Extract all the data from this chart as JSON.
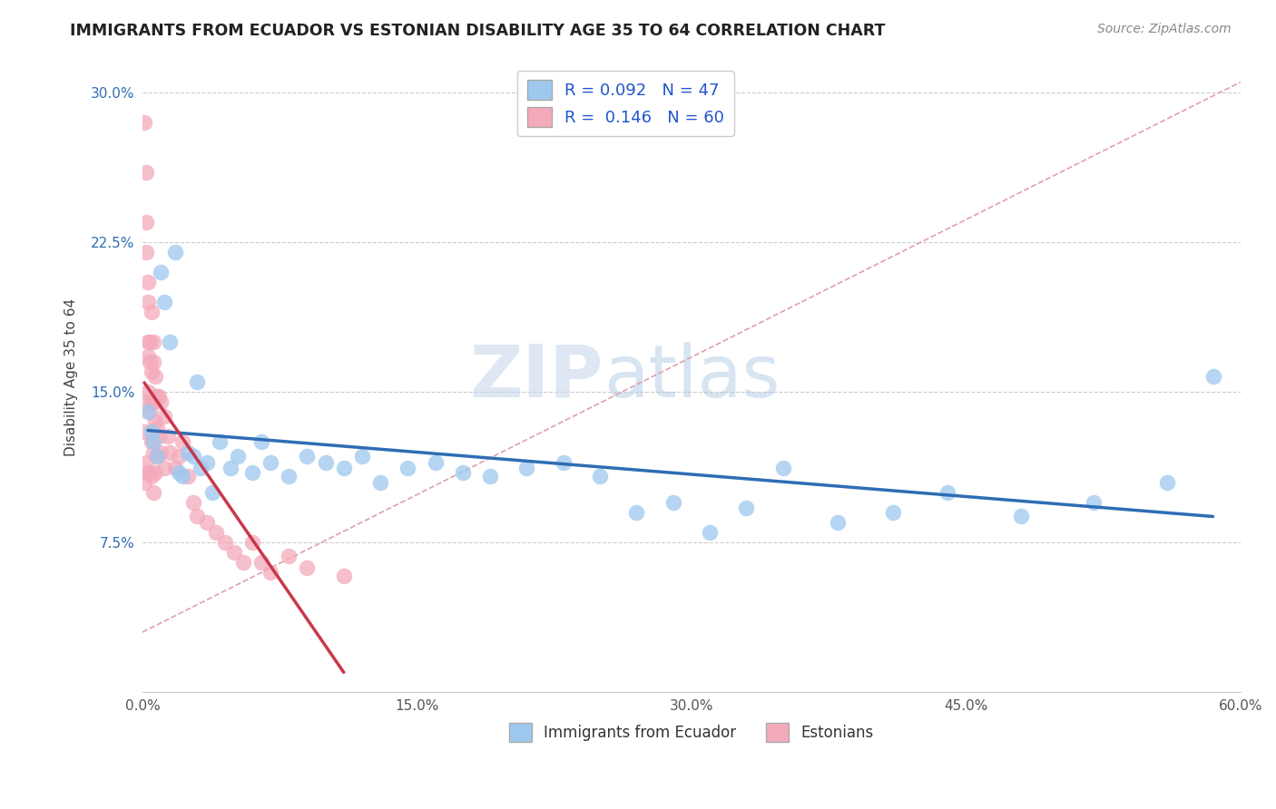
{
  "title": "IMMIGRANTS FROM ECUADOR VS ESTONIAN DISABILITY AGE 35 TO 64 CORRELATION CHART",
  "source": "Source: ZipAtlas.com",
  "ylabel": "Disability Age 35 to 64",
  "xlim": [
    0.0,
    0.6
  ],
  "ylim": [
    0.0,
    0.315
  ],
  "xticks": [
    0.0,
    0.15,
    0.3,
    0.45,
    0.6
  ],
  "xticklabels": [
    "0.0%",
    "15.0%",
    "30.0%",
    "45.0%",
    "60.0%"
  ],
  "yticks": [
    0.0,
    0.075,
    0.15,
    0.225,
    0.3
  ],
  "yticklabels": [
    "",
    "7.5%",
    "15.0%",
    "22.5%",
    "30.0%"
  ],
  "R_blue": 0.092,
  "N_blue": 47,
  "R_pink": 0.146,
  "N_pink": 60,
  "blue_color": "#9EC8EE",
  "pink_color": "#F4AABB",
  "blue_line_color": "#2E6DB4",
  "pink_line_color": "#C8384A",
  "legend_labels": [
    "Immigrants from Ecuador",
    "Estonians"
  ],
  "blue_scatter_x": [
    0.003,
    0.005,
    0.006,
    0.008,
    0.01,
    0.012,
    0.015,
    0.018,
    0.02,
    0.022,
    0.025,
    0.028,
    0.03,
    0.032,
    0.035,
    0.038,
    0.042,
    0.048,
    0.052,
    0.06,
    0.065,
    0.07,
    0.08,
    0.09,
    0.1,
    0.11,
    0.12,
    0.13,
    0.145,
    0.16,
    0.175,
    0.19,
    0.21,
    0.23,
    0.25,
    0.27,
    0.29,
    0.31,
    0.33,
    0.35,
    0.38,
    0.41,
    0.44,
    0.48,
    0.52,
    0.56,
    0.585
  ],
  "blue_scatter_y": [
    0.14,
    0.13,
    0.125,
    0.118,
    0.21,
    0.195,
    0.175,
    0.22,
    0.11,
    0.108,
    0.12,
    0.118,
    0.155,
    0.112,
    0.115,
    0.1,
    0.125,
    0.112,
    0.118,
    0.11,
    0.125,
    0.115,
    0.108,
    0.118,
    0.115,
    0.112,
    0.118,
    0.105,
    0.112,
    0.115,
    0.11,
    0.108,
    0.112,
    0.115,
    0.108,
    0.09,
    0.095,
    0.08,
    0.092,
    0.112,
    0.085,
    0.09,
    0.1,
    0.088,
    0.095,
    0.105,
    0.158
  ],
  "pink_scatter_x": [
    0.001,
    0.001,
    0.001,
    0.002,
    0.002,
    0.002,
    0.002,
    0.002,
    0.003,
    0.003,
    0.003,
    0.003,
    0.003,
    0.004,
    0.004,
    0.004,
    0.004,
    0.005,
    0.005,
    0.005,
    0.005,
    0.005,
    0.006,
    0.006,
    0.006,
    0.006,
    0.006,
    0.007,
    0.007,
    0.007,
    0.007,
    0.008,
    0.008,
    0.008,
    0.009,
    0.009,
    0.01,
    0.01,
    0.012,
    0.012,
    0.014,
    0.015,
    0.018,
    0.02,
    0.022,
    0.025,
    0.028,
    0.03,
    0.035,
    0.04,
    0.045,
    0.05,
    0.055,
    0.06,
    0.065,
    0.07,
    0.08,
    0.09,
    0.11,
    0.003
  ],
  "pink_scatter_y": [
    0.285,
    0.13,
    0.105,
    0.26,
    0.235,
    0.22,
    0.145,
    0.115,
    0.205,
    0.195,
    0.175,
    0.15,
    0.11,
    0.175,
    0.165,
    0.14,
    0.11,
    0.19,
    0.16,
    0.145,
    0.125,
    0.108,
    0.175,
    0.165,
    0.145,
    0.12,
    0.1,
    0.158,
    0.148,
    0.135,
    0.11,
    0.148,
    0.132,
    0.118,
    0.148,
    0.128,
    0.145,
    0.12,
    0.138,
    0.112,
    0.128,
    0.12,
    0.112,
    0.118,
    0.125,
    0.108,
    0.095,
    0.088,
    0.085,
    0.08,
    0.075,
    0.07,
    0.065,
    0.075,
    0.065,
    0.06,
    0.068,
    0.062,
    0.058,
    0.168
  ]
}
